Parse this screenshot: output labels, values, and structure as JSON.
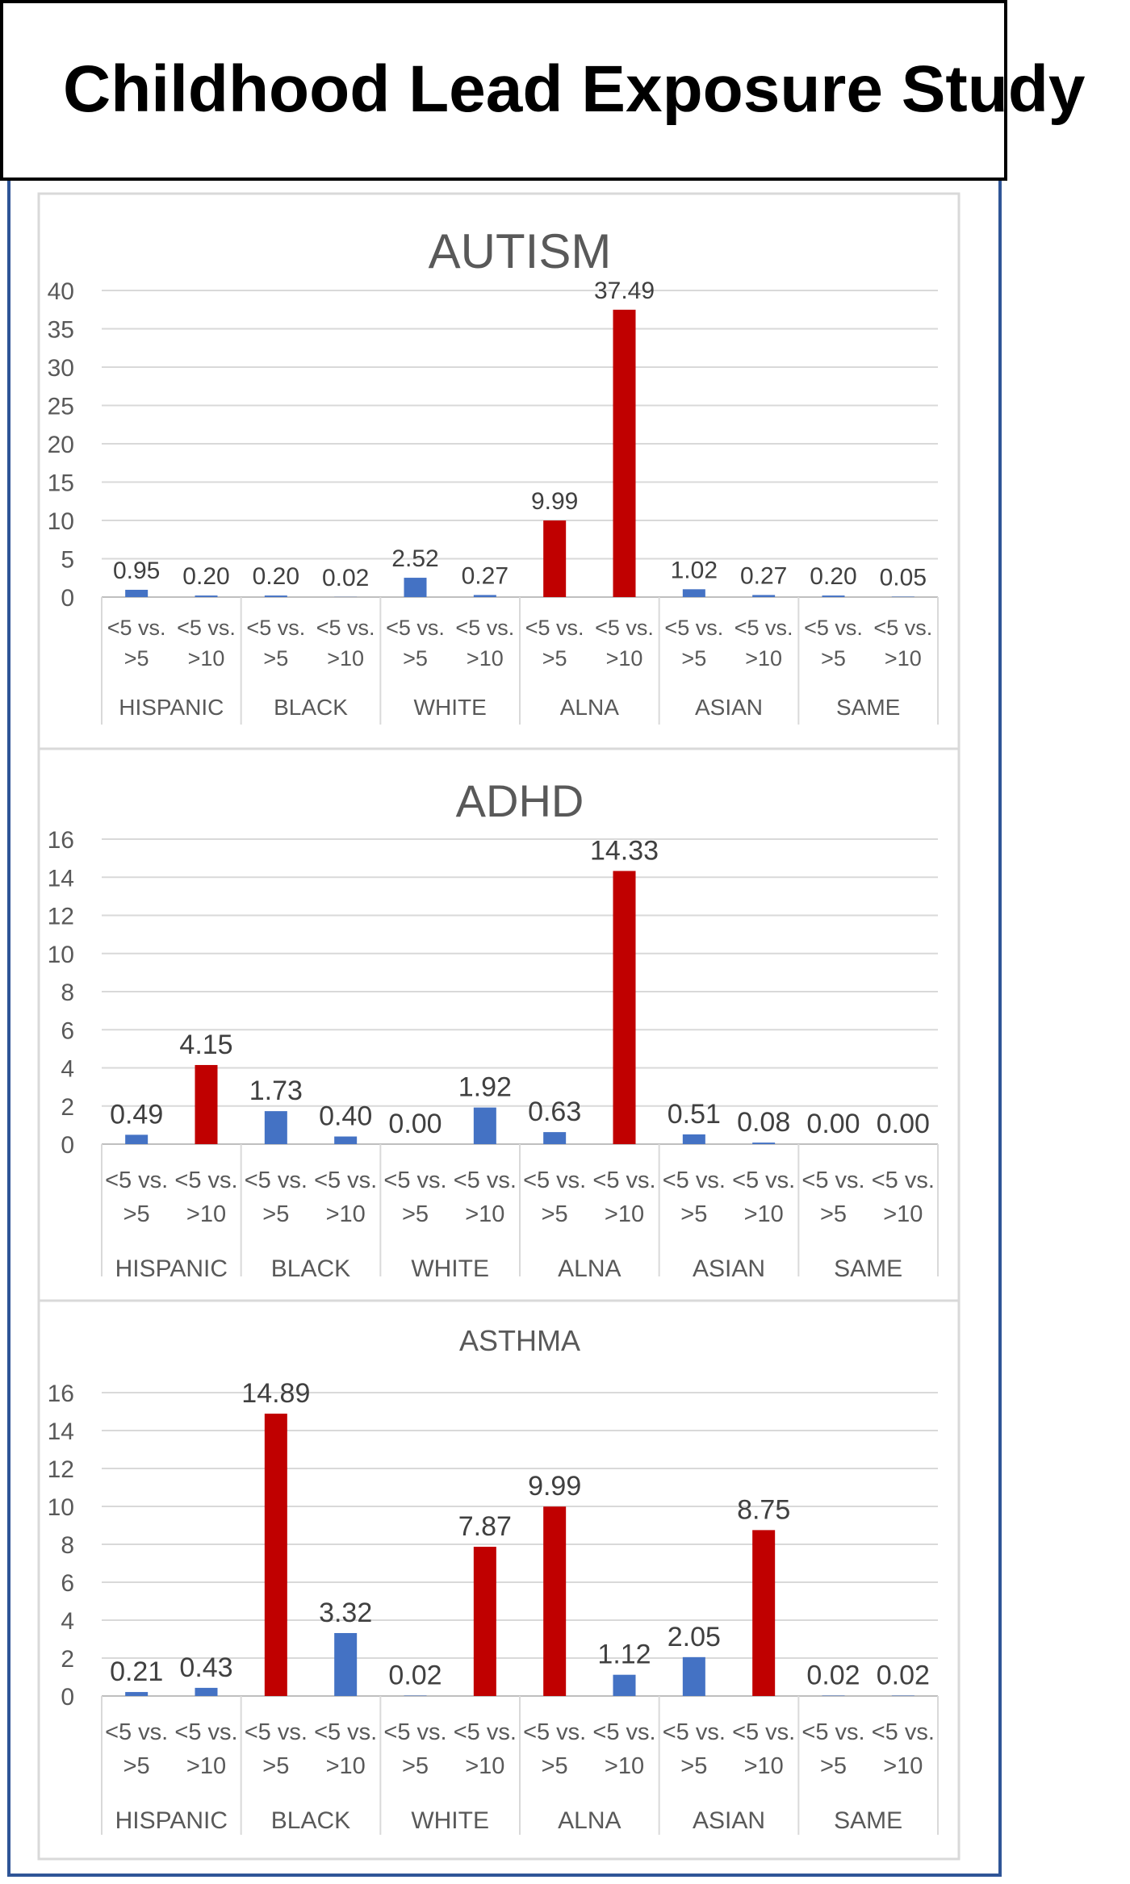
{
  "page_title": "Childhood Lead Exposure Study",
  "colors": {
    "low": "#4472C4",
    "high": "#C00000",
    "axis_text": "#595959",
    "label_text": "#404040",
    "gridline": "#d9d9d9",
    "panel_border": "#d9d9d9",
    "frame_blue": "#2F5597"
  },
  "chart_data": [
    {
      "type": "bar",
      "title": "AUTISM",
      "groups": [
        "HISPANIC",
        "BLACK",
        "WHITE",
        "ALNA",
        "ASIAN",
        "SAME"
      ],
      "sub_categories": [
        "<5 vs. >5",
        "<5 vs. >10"
      ],
      "values": [
        0.95,
        0.2,
        0.2,
        0.02,
        2.52,
        0.27,
        9.99,
        37.49,
        1.02,
        0.27,
        0.2,
        0.05
      ],
      "value_labels": [
        "0.95",
        "0.20",
        "0.20",
        "0.02",
        "2.52",
        "0.27",
        "9.99",
        "37.49",
        "1.02",
        "0.27",
        "0.20",
        "0.05"
      ],
      "highlight": [
        false,
        false,
        false,
        false,
        false,
        false,
        true,
        true,
        false,
        false,
        false,
        false
      ],
      "ylim": [
        0,
        40
      ],
      "yticks": [
        0,
        5,
        10,
        15,
        20,
        25,
        30,
        35,
        40
      ],
      "grid": true,
      "xlabel": "",
      "ylabel": ""
    },
    {
      "type": "bar",
      "title": "ADHD",
      "groups": [
        "HISPANIC",
        "BLACK",
        "WHITE",
        "ALNA",
        "ASIAN",
        "SAME"
      ],
      "sub_categories": [
        "<5 vs. >5",
        "<5 vs. >10"
      ],
      "values": [
        0.49,
        4.15,
        1.73,
        0.4,
        0.0,
        1.92,
        0.63,
        14.33,
        0.51,
        0.08,
        0.0,
        0.0
      ],
      "value_labels": [
        "0.49",
        "4.15",
        "1.73",
        "0.40",
        "0.00",
        "1.92",
        "0.63",
        "14.33",
        "0.51",
        "0.08",
        "0.00",
        "0.00"
      ],
      "highlight": [
        false,
        true,
        false,
        false,
        false,
        false,
        false,
        true,
        false,
        false,
        false,
        false
      ],
      "ylim": [
        0,
        16
      ],
      "yticks": [
        0,
        2,
        4,
        6,
        8,
        10,
        12,
        14,
        16
      ],
      "grid": true,
      "xlabel": "",
      "ylabel": ""
    },
    {
      "type": "bar",
      "title": "ASTHMA",
      "groups": [
        "HISPANIC",
        "BLACK",
        "WHITE",
        "ALNA",
        "ASIAN",
        "SAME"
      ],
      "sub_categories": [
        "<5 vs. >5",
        "<5 vs. >10"
      ],
      "values": [
        0.21,
        0.43,
        14.89,
        3.32,
        0.02,
        7.87,
        9.99,
        1.12,
        2.05,
        8.75,
        0.02,
        0.02
      ],
      "value_labels": [
        "0.21",
        "0.43",
        "14.89",
        "3.32",
        "0.02",
        "7.87",
        "9.99",
        "1.12",
        "2.05",
        "8.75",
        "0.02",
        "0.02"
      ],
      "highlight": [
        false,
        false,
        true,
        false,
        false,
        true,
        true,
        false,
        false,
        true,
        false,
        false
      ],
      "ylim": [
        0,
        16
      ],
      "yticks": [
        0,
        2,
        4,
        6,
        8,
        10,
        12,
        14,
        16
      ],
      "grid": true,
      "xlabel": "",
      "ylabel": ""
    }
  ]
}
